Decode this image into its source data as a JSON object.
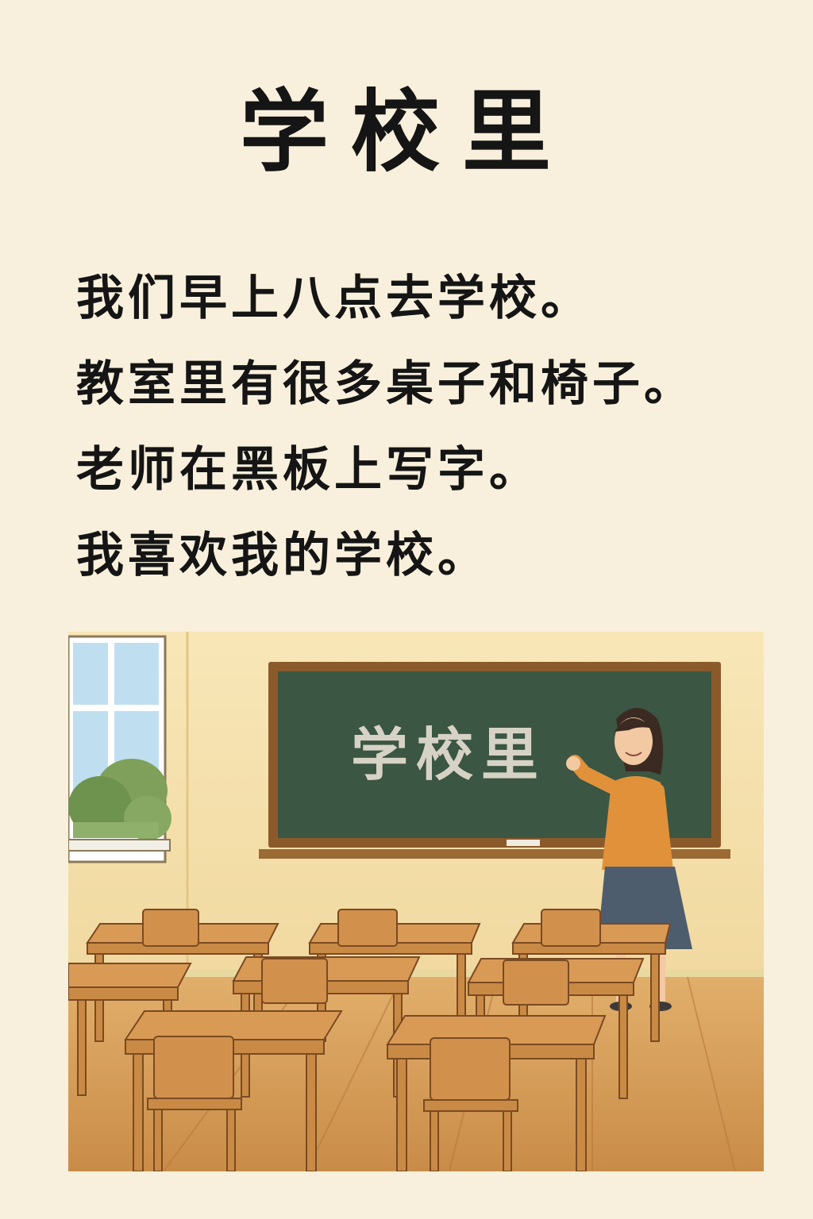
{
  "title": "学校里",
  "lines": [
    "我们早上八点去学校。",
    "教室里有很多桌子和椅子。",
    "老师在黑板上写字。",
    "我喜欢我的学校。"
  ],
  "illustration": {
    "blackboard_text": "学校里",
    "colors": {
      "wall": "#f4dea6",
      "blackboard": "#3f5a47",
      "board_frame": "#8b5a2b",
      "floor": "#d8a25c",
      "desk": "#c98a45",
      "sweater": "#e0913a",
      "skirt": "#4e5d6e"
    }
  }
}
